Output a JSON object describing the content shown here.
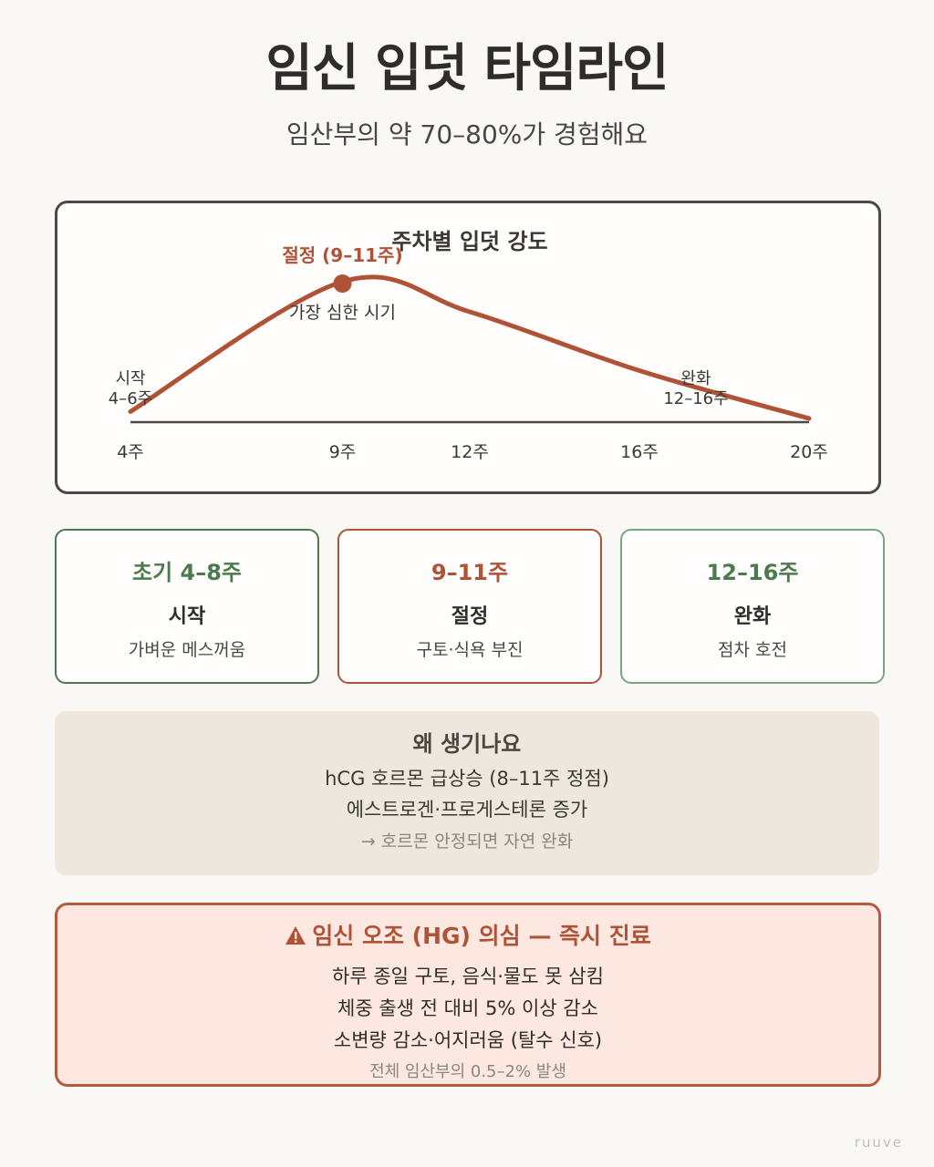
{
  "header": {
    "title": "임신 입덧 타임라인",
    "subtitle": "임산부의 약 70–80%가 경험해요"
  },
  "chart_data": {
    "type": "line",
    "title": "주차별 입덧 강도",
    "x_ticks": [
      "4주",
      "9주",
      "12주",
      "16주",
      "20주"
    ],
    "x": [
      4,
      9,
      12,
      16,
      20
    ],
    "series": [
      {
        "values": [
          0.05,
          1.0,
          0.78,
          0.35,
          0.0
        ]
      }
    ],
    "peak": {
      "label": "절정 (9–11주)",
      "note": "가장 심한 시기",
      "x": 9
    },
    "annotations": [
      {
        "line1": "시작",
        "line2": "4–6주"
      },
      {
        "line1": "완화",
        "line2": "12–16주"
      }
    ],
    "line_color": "#b05236"
  },
  "stages": [
    {
      "label": "초기 4–8주",
      "name": "시작",
      "desc": "가벼운 메스꺼움",
      "color": "#4a7a4d"
    },
    {
      "label": "9–11주",
      "name": "절정",
      "desc": "구토·식욕 부진",
      "color": "#b05236"
    },
    {
      "label": "12–16주",
      "name": "완화",
      "desc": "점차 호전",
      "color": "#4a7a4d"
    }
  ],
  "why": {
    "title": "왜 생기나요",
    "lines": [
      "hCG 호르몬 급상승 (8–11주 정점)",
      "에스트로겐·프로게스테론 증가"
    ],
    "note": "→ 호르몬 안정되면 자연 완화"
  },
  "warning": {
    "icon": "warning-icon",
    "title": "임신 오조 (HG) 의심 — 즉시 진료",
    "lines": [
      "하루 종일 구토, 음식·물도 못 삼킴",
      "체중 출생 전 대비 5% 이상 감소",
      "소변량 감소·어지러움 (탈수 신호)"
    ],
    "note": "전체 임산부의 0.5–2% 발생"
  },
  "brand": "ruuve"
}
